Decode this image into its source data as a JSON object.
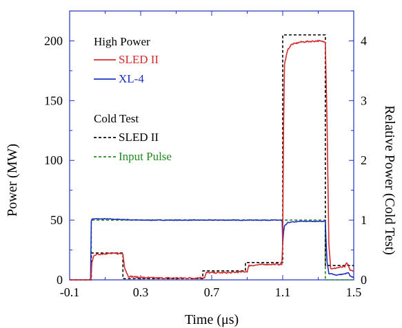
{
  "chart_data": {
    "type": "line",
    "xlabel": "Time (μs)",
    "ylabel": "Power (MW)",
    "y2label": "Relative Power (Cold Test)",
    "xlim": [
      -0.1,
      1.5
    ],
    "ylim": [
      0,
      225
    ],
    "y2lim": [
      0,
      4.5
    ],
    "xticks": [
      -0.1,
      0.3,
      0.7,
      1.1,
      1.5
    ],
    "xtick_labels": [
      "-0.1",
      "0.3",
      "0.7",
      "1.1",
      "1.5"
    ],
    "yticks": [
      0,
      50,
      100,
      150,
      200
    ],
    "ytick_labels": [
      "0",
      "50",
      "100",
      "150",
      "200"
    ],
    "y2ticks": [
      0,
      1,
      2,
      3,
      4
    ],
    "y2tick_labels": [
      "0",
      "1",
      "2",
      "3",
      "4"
    ],
    "grid": false,
    "legend": {
      "groups": [
        {
          "heading": "High Power",
          "entries": [
            "SLED II",
            "XL-4"
          ]
        },
        {
          "heading": "Cold Test",
          "entries": [
            "SLED II",
            "Input Pulse"
          ]
        }
      ]
    },
    "series": [
      {
        "name": "SLED II",
        "group": "High Power",
        "axis": "left",
        "color": "#d42a2a",
        "dash": "solid",
        "noise": 1.2,
        "x": [
          -0.1,
          0.0,
          0.02,
          0.025,
          0.04,
          0.1,
          0.2,
          0.21,
          0.23,
          0.3,
          0.4,
          0.5,
          0.6,
          0.66,
          0.67,
          0.68,
          0.8,
          0.9,
          0.91,
          0.92,
          1.0,
          1.095,
          1.1,
          1.105,
          1.11,
          1.12,
          1.13,
          1.15,
          1.2,
          1.3,
          1.34,
          1.35,
          1.36,
          1.37,
          1.38,
          1.4,
          1.45,
          1.46,
          1.47,
          1.48,
          1.5
        ],
        "y": [
          0,
          0,
          0,
          15,
          21,
          22,
          22,
          10,
          3,
          2,
          1.5,
          1.5,
          1.5,
          2,
          6,
          6,
          6,
          7,
          12,
          12,
          13,
          13,
          30,
          130,
          180,
          188,
          193,
          197,
          199,
          200,
          199,
          130,
          30,
          10,
          9,
          10,
          11,
          14,
          12,
          8,
          7
        ]
      },
      {
        "name": "XL-4",
        "group": "High Power",
        "axis": "left",
        "color": "#1c2fc2",
        "dash": "solid",
        "noise": 0.6,
        "x": [
          -0.1,
          0.0,
          0.01,
          0.018,
          0.022,
          0.026,
          0.05,
          0.1,
          0.3,
          0.5,
          0.7,
          0.9,
          1.09,
          1.097,
          1.1,
          1.105,
          1.11,
          1.13,
          1.2,
          1.3,
          1.34,
          1.345,
          1.35,
          1.36,
          1.38,
          1.4,
          1.45,
          1.47,
          1.48,
          1.5
        ],
        "y": [
          0,
          0,
          0,
          1,
          49,
          51,
          51,
          51,
          50,
          50,
          50,
          50,
          50,
          49,
          30,
          40,
          45,
          48,
          49,
          49,
          49,
          30,
          15,
          5,
          5,
          4,
          5,
          6,
          3,
          2
        ]
      },
      {
        "name": "SLED II",
        "group": "Cold Test",
        "axis": "right",
        "color": "#000000",
        "dash": "4,3",
        "noise": 0,
        "x": [
          -0.1,
          0.022,
          0.022,
          0.2,
          0.2,
          0.65,
          0.65,
          0.89,
          0.89,
          1.1,
          1.1,
          1.34,
          1.34,
          1.5
        ],
        "y": [
          0,
          0,
          0.45,
          0.45,
          0.02,
          0.02,
          0.15,
          0.15,
          0.29,
          0.29,
          4.1,
          4.1,
          0.24,
          0.24
        ]
      },
      {
        "name": "Input Pulse",
        "group": "Cold Test",
        "axis": "right",
        "color": "#1e8a1e",
        "dash": "4,3",
        "noise": 0,
        "x": [
          -0.1,
          0.022,
          0.022,
          1.34,
          1.34,
          1.5
        ],
        "y": [
          0,
          0,
          1.0,
          1.0,
          0,
          0
        ]
      }
    ]
  }
}
